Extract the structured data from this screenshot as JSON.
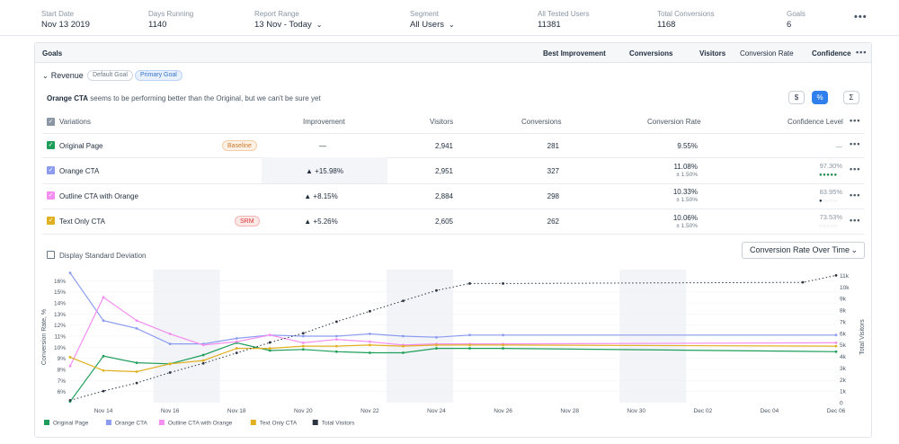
{
  "topbar": {
    "start_date": {
      "label": "Start Date",
      "value": "Nov 13 2019"
    },
    "days_running": {
      "label": "Days Running",
      "value": "1140"
    },
    "report_range": {
      "label": "Report Range",
      "value": "13 Nov - Today"
    },
    "segment": {
      "label": "Segment",
      "value": "All Users"
    },
    "all_tested_users": {
      "label": "All Tested Users",
      "value": "11381"
    },
    "total_conversions": {
      "label": "Total Conversions",
      "value": "1168"
    },
    "goals": {
      "label": "Goals",
      "value": "6"
    },
    "more": "•••"
  },
  "goals_header": {
    "title": "Goals",
    "best_improvement": "Best Improvement",
    "conversions": "Conversions",
    "visitors": "Visitors",
    "conversion_rate": "Conversion Rate",
    "confidence": "Confidence",
    "more": "•••"
  },
  "goal": {
    "name": "Revenue",
    "collapse_icon": "chevron-down",
    "tags": [
      "Default Goal",
      "Primary Goal"
    ],
    "message_bold": "Orange CTA",
    "message_rest": " seems to be performing better than the Original, but we can't be sure yet",
    "view_toggles": [
      "$",
      "%",
      "Σ"
    ]
  },
  "table": {
    "headers": {
      "variations": "Variations",
      "improvement": "Improvement",
      "visitors": "Visitors",
      "conversions": "Conversions",
      "conversion_rate": "Conversion Rate",
      "confidence_level": "Confidence Level"
    },
    "rows": [
      {
        "name": "Original Page",
        "color": "#1e9e5a",
        "badge": "Baseline",
        "improvement": "—",
        "visitors": "2,941",
        "conversions": "281",
        "rate": "9.55%",
        "deviation": "",
        "confidence": "—",
        "confidence_dots": 0
      },
      {
        "name": "Orange CTA",
        "color": "#8b9cf0",
        "badge": "",
        "improvement": "▲ +15.98%",
        "visitors": "2,951",
        "conversions": "327",
        "rate": "11.08%",
        "deviation": "± 1.50%",
        "confidence": "97.30%",
        "confidence_dots": 5
      },
      {
        "name": "Outline CTA with Orange",
        "color": "#f48ef0",
        "badge": "",
        "improvement": "▲ +8.15%",
        "visitors": "2,884",
        "conversions": "298",
        "rate": "10.33%",
        "deviation": "± 1.50%",
        "confidence": "83.95%",
        "confidence_dots": 1
      },
      {
        "name": "Text Only CTA",
        "color": "#e0b020",
        "badge": "SRM",
        "improvement": "▲ +5.26%",
        "visitors": "2,605",
        "conversions": "262",
        "rate": "10.06%",
        "deviation": "± 1.50%",
        "confidence": "73.53%",
        "confidence_dots": 0
      }
    ]
  },
  "chart_controls": {
    "display_std_dev": "Display Standard Deviation",
    "chart_select": "Conversion Rate Over Time"
  },
  "chart_data": {
    "type": "line",
    "ylabel": "Conversion Rate, %",
    "y2label": "Total Visitors",
    "ylim": [
      5,
      17
    ],
    "y2lim": [
      0,
      11500
    ],
    "yticks": [
      "6%",
      "7%",
      "8%",
      "9%",
      "10%",
      "11%",
      "12%",
      "13%",
      "14%",
      "15%",
      "16%"
    ],
    "y2ticks": [
      "0",
      "1k",
      "2k",
      "3k",
      "4k",
      "5k",
      "6k",
      "7k",
      "8k",
      "9k",
      "10k",
      "11k"
    ],
    "xticks": [
      "Nov 14",
      "Nov 16",
      "Nov 18",
      "Nov 20",
      "Nov 22",
      "Nov 24",
      "Nov 26",
      "Nov 28",
      "Nov 30",
      "Dec 02",
      "Dec 04",
      "Dec 06"
    ],
    "xlim": [
      13,
      36
    ],
    "shaded_ranges": [
      [
        15.5,
        17.5
      ],
      [
        22.5,
        24.5
      ],
      [
        29.5,
        31.5
      ]
    ],
    "series": [
      {
        "name": "Original Page",
        "color": "#1e9e5a",
        "axis": "left",
        "x": [
          13,
          14,
          15,
          16,
          17,
          18,
          19,
          20,
          21,
          22,
          23,
          24,
          25,
          26,
          36
        ],
        "y": [
          5.1,
          9.2,
          8.6,
          8.5,
          9.3,
          10.4,
          9.7,
          9.8,
          9.6,
          9.5,
          9.5,
          9.9,
          9.9,
          9.9,
          9.6
        ]
      },
      {
        "name": "Orange CTA",
        "color": "#8b9cf0",
        "axis": "left",
        "x": [
          13,
          14,
          15,
          16,
          17,
          18,
          19,
          20,
          21,
          22,
          23,
          24,
          25,
          26,
          36
        ],
        "y": [
          16.7,
          12.4,
          11.7,
          10.3,
          10.3,
          10.8,
          11.1,
          11.0,
          11.0,
          11.2,
          11.0,
          10.9,
          11.1,
          11.1,
          11.1
        ]
      },
      {
        "name": "Outline CTA with Orange",
        "color": "#f48ef0",
        "axis": "left",
        "x": [
          13,
          14,
          15,
          16,
          17,
          18,
          19,
          20,
          21,
          22,
          23,
          24,
          25,
          26,
          36
        ],
        "y": [
          8.3,
          14.5,
          12.4,
          11.2,
          10.2,
          10.5,
          11.1,
          10.4,
          10.7,
          10.5,
          10.2,
          10.3,
          10.3,
          10.3,
          10.4
        ]
      },
      {
        "name": "Text Only CTA",
        "color": "#e0b020",
        "axis": "left",
        "x": [
          13,
          14,
          15,
          16,
          17,
          18,
          19,
          20,
          21,
          22,
          23,
          24,
          25,
          26,
          36
        ],
        "y": [
          9.1,
          7.9,
          7.8,
          8.5,
          8.8,
          9.9,
          9.9,
          10.1,
          10.1,
          10.2,
          10.1,
          10.2,
          10.2,
          10.2,
          10.1
        ]
      },
      {
        "name": "Total Visitors",
        "color": "#2b3440",
        "axis": "right",
        "dashed": true,
        "x": [
          13,
          14,
          15,
          16,
          17,
          18,
          19,
          20,
          21,
          22,
          23,
          24,
          25,
          26,
          35,
          36
        ],
        "y": [
          200,
          1000,
          1700,
          2600,
          3400,
          4300,
          5200,
          6000,
          7000,
          7900,
          8800,
          9700,
          10300,
          10300,
          10400,
          11000
        ]
      }
    ],
    "legend_placement": "bottom-left"
  }
}
